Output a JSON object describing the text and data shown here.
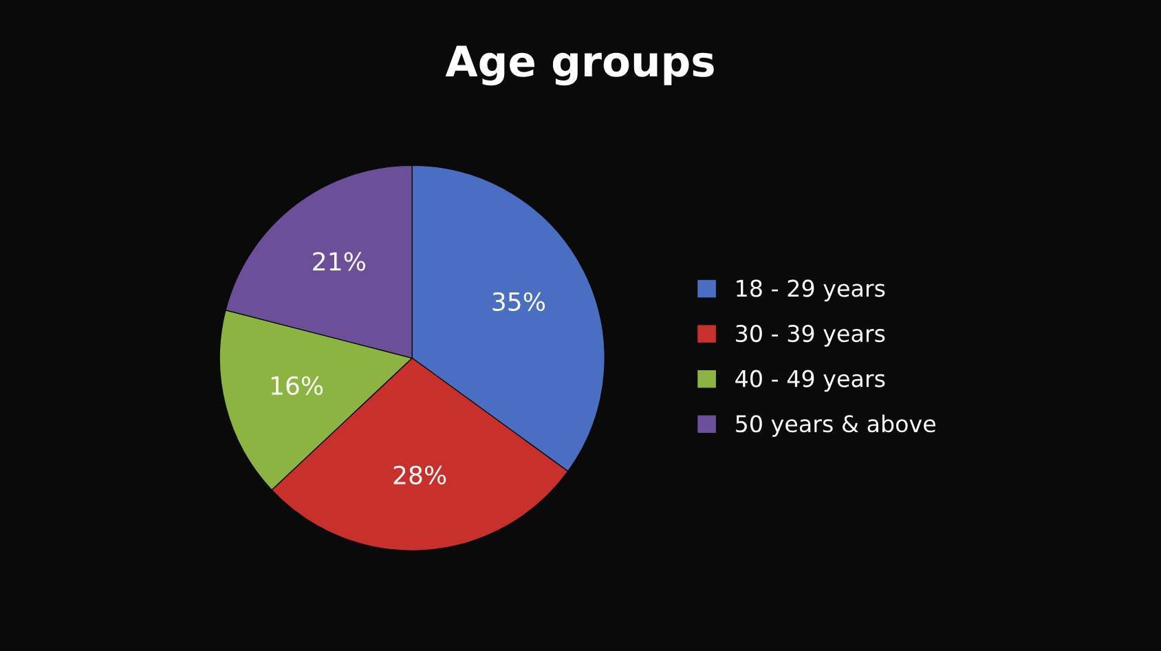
{
  "chart_data": {
    "type": "pie",
    "title": "Age groups",
    "categories": [
      "18 - 29 years",
      "30 - 39 years",
      "40 - 49 years",
      "50 years & above"
    ],
    "values": [
      35,
      28,
      16,
      21
    ],
    "colors": [
      "#4a6fc2",
      "#c8302c",
      "#8bb443",
      "#6b4f98"
    ],
    "value_labels": [
      "35%",
      "28%",
      "16%",
      "21%"
    ],
    "legend": "right"
  }
}
